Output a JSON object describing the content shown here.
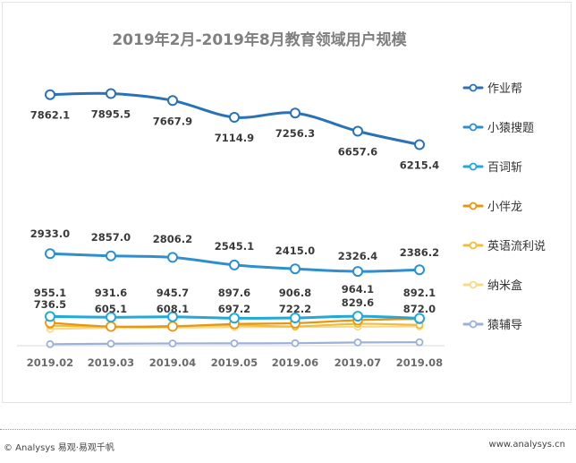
{
  "chart_data": {
    "type": "line",
    "title": "2019年2月-2019年8月教育领域用户规模",
    "categories": [
      "2019.02",
      "2019.03",
      "2019.04",
      "2019.05",
      "2019.06",
      "2019.07",
      "2019.08"
    ],
    "ylim": [
      0,
      8300
    ],
    "grid": false,
    "legend_position": "right",
    "series": [
      {
        "name": "作业帮",
        "color": "#2a72b5",
        "values": [
          7862.1,
          7895.5,
          7667.9,
          7114.9,
          7256.3,
          6657.6,
          6215.4
        ],
        "labels_shown": true
      },
      {
        "name": "小猿搜题",
        "color": "#2e8fd0",
        "values": [
          2933.0,
          2857.0,
          2806.2,
          2545.1,
          2415.0,
          2326.4,
          2386.2
        ],
        "labels_shown": true
      },
      {
        "name": "百词斩",
        "color": "#22a9d8",
        "values": [
          955.1,
          931.6,
          945.7,
          897.6,
          906.8,
          964.1,
          892.1
        ],
        "labels_shown": true
      },
      {
        "name": "小伴龙",
        "color": "#e8960e",
        "values": [
          736.5,
          605.1,
          608.1,
          697.2,
          722.2,
          829.6,
          872.0
        ],
        "labels_shown": true
      },
      {
        "name": "英语流利说",
        "color": "#f0be3c",
        "values": [
          640,
          600,
          625,
          650,
          610,
          700,
          660
        ],
        "labels_shown": false
      },
      {
        "name": "纳米盒",
        "color": "#f7d98a",
        "values": [
          520,
          560,
          570,
          585,
          595,
          600,
          610
        ],
        "labels_shown": false
      },
      {
        "name": "猿辅导",
        "color": "#9cb0d8",
        "values": [
          20,
          35,
          45,
          48,
          52,
          75,
          85
        ],
        "labels_shown": false
      }
    ]
  },
  "footer": {
    "copyright": "© Analysys 易观·易观千帆",
    "website": "www.analysys.cn"
  }
}
